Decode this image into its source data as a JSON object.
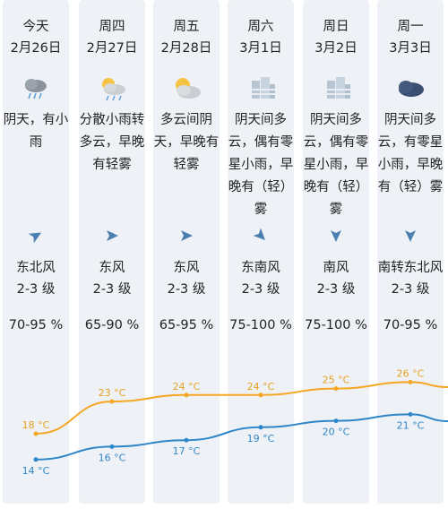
{
  "days": [
    {
      "weekday": "今天",
      "date": "2月26日",
      "icon": "cloud-rain-icon",
      "desc": [
        "阴天，有小",
        "雨"
      ],
      "wind_dir": "东北风",
      "wind_level": "2-3 级",
      "humidity": "70-95 %",
      "high": "18 °C",
      "low": "14 °C"
    },
    {
      "weekday": "周四",
      "date": "2月27日",
      "icon": "sun-cloud-rain-icon",
      "desc": [
        "分散小雨转",
        "多云，早晚",
        "有轻雾"
      ],
      "wind_dir": "东风",
      "wind_level": "2-3 级",
      "humidity": "65-90 %",
      "high": "23 °C",
      "low": "16 °C"
    },
    {
      "weekday": "周五",
      "date": "2月28日",
      "icon": "partly-cloudy-icon",
      "desc": [
        "多云间阴",
        "天，早晚有",
        "轻雾"
      ],
      "wind_dir": "东风",
      "wind_level": "2-3 级",
      "humidity": "65-95 %",
      "high": "24 °C",
      "low": "17 °C"
    },
    {
      "weekday": "周六",
      "date": "3月1日",
      "icon": "fog-buildings-icon",
      "desc": [
        "阴天间多",
        "云，偶有零",
        "星小雨，早",
        "晚有（轻）",
        "雾"
      ],
      "wind_dir": "东南风",
      "wind_level": "2-3 级",
      "humidity": "75-100 %",
      "high": "24 °C",
      "low": "19 °C"
    },
    {
      "weekday": "周日",
      "date": "3月2日",
      "icon": "fog-buildings-icon",
      "desc": [
        "阴天间多",
        "云，偶有零",
        "星小雨，早",
        "晚有（轻）",
        "雾"
      ],
      "wind_dir": "南风",
      "wind_level": "2-3 级",
      "humidity": "75-100 %",
      "high": "25 °C",
      "low": "20 °C"
    },
    {
      "weekday": "周一",
      "date": "3月3日",
      "icon": "cloud-icon",
      "desc": [
        "阴天间多",
        "云，有零星",
        "小雨，早晚",
        "有（轻）雾"
      ],
      "wind_dir": "南转东北风",
      "wind_level": "2-3 级",
      "humidity": "70-95 %",
      "high": "26 °C",
      "low": "21 °C"
    }
  ],
  "colors": {
    "column_bg": "#eef2f6",
    "high_line": "#f5a623",
    "low_line": "#2e86c9",
    "arrow": "#4a7fb0",
    "text_high": "#e6a020",
    "text_low": "#2e86c9"
  }
}
